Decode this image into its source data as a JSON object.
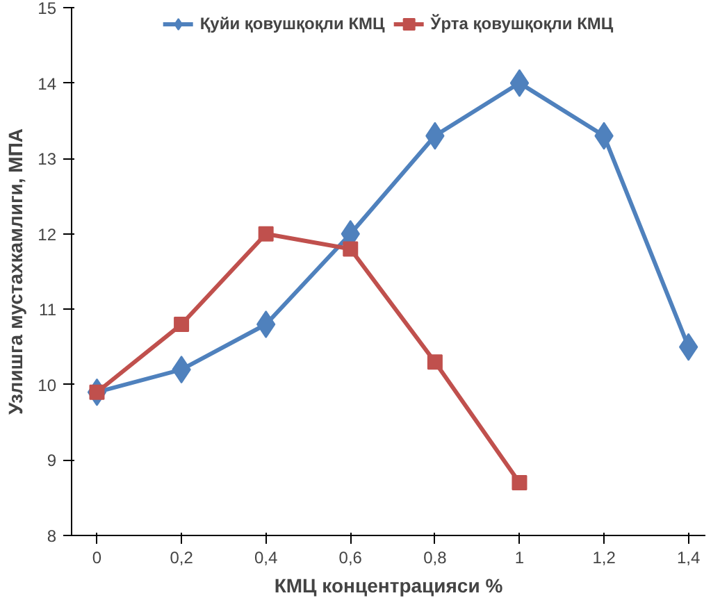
{
  "chart_data": {
    "type": "line",
    "xlabel": "КМЦ концентрацияси %",
    "ylabel": "Узлишга мустахкамлиги, МПА",
    "x": [
      0,
      0.2,
      0.4,
      0.6,
      0.8,
      1,
      1.2,
      1.4
    ],
    "series": [
      {
        "name": "Қуйи қовушқоқли КМЦ",
        "color": "#4f81bd",
        "marker": "diamond",
        "values": [
          9.9,
          10.2,
          10.8,
          12.0,
          13.3,
          14.0,
          13.3,
          10.5
        ]
      },
      {
        "name": "Ўрта қовушқоқли КМЦ",
        "color": "#c0504d",
        "marker": "square",
        "values": [
          9.9,
          10.8,
          12.0,
          11.8,
          10.3,
          8.7,
          null,
          null
        ]
      }
    ],
    "xlim": [
      -0.06,
      1.44
    ],
    "ylim": [
      8,
      15
    ],
    "xticks": [
      0,
      {
        "value": 0.2,
        "label": "0,2"
      },
      {
        "value": 0.4,
        "label": "0,4"
      },
      {
        "value": 0.6,
        "label": "0,6"
      },
      {
        "value": 0.8,
        "label": "0,8"
      },
      1,
      {
        "value": 1.2,
        "label": "1,2"
      },
      {
        "value": 1.4,
        "label": "1,4"
      }
    ],
    "yticks": [
      8,
      9,
      10,
      11,
      12,
      13,
      14,
      15
    ],
    "grid": false,
    "legend": "top",
    "line_style": "solid"
  }
}
